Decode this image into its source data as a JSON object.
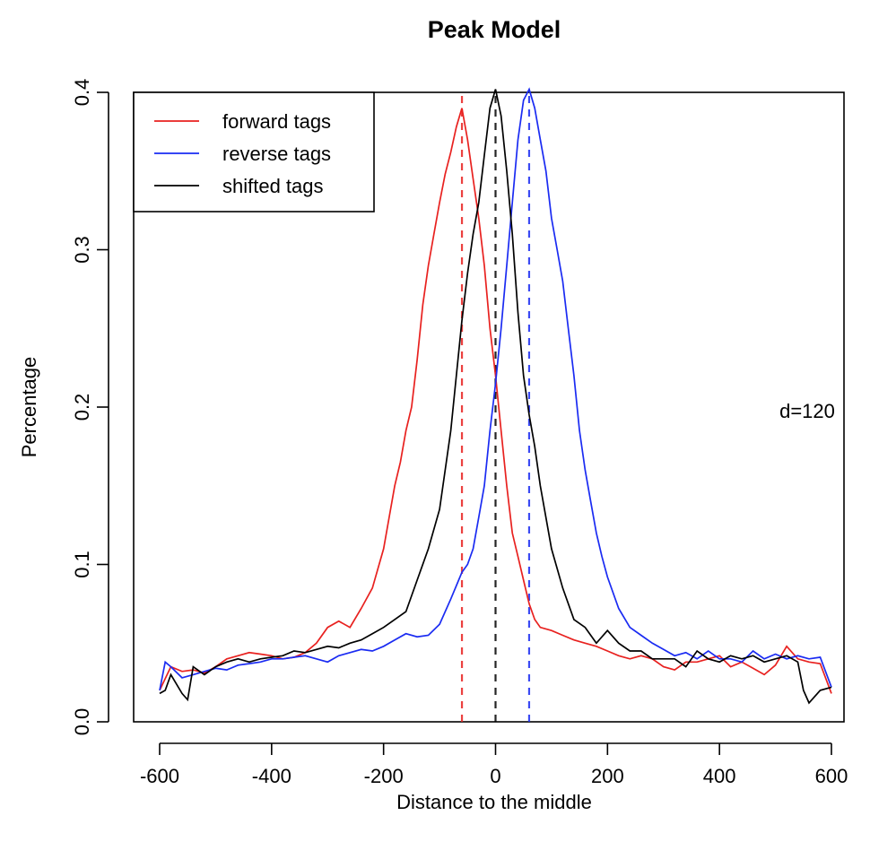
{
  "chart_data": {
    "type": "line",
    "title": "Peak Model",
    "xlabel": "Distance to the middle",
    "ylabel": "Percentage",
    "xlim": [
      -600,
      600
    ],
    "ylim": [
      0,
      0.4
    ],
    "xticks": [
      -600,
      -400,
      -200,
      0,
      200,
      400,
      600
    ],
    "yticks": [
      0.0,
      0.1,
      0.2,
      0.3,
      0.4
    ],
    "xtick_labels": [
      "-600",
      "-400",
      "-200",
      "0",
      "200",
      "400",
      "600"
    ],
    "ytick_labels": [
      "0.0",
      "0.1",
      "0.2",
      "0.3",
      "0.4"
    ],
    "grid": false,
    "legend_position": "top-left",
    "annotation": "d=120",
    "series": [
      {
        "name": "forward tags",
        "color": "#e8211f",
        "x": [
          -600,
          -580,
          -560,
          -540,
          -520,
          -500,
          -480,
          -460,
          -440,
          -420,
          -400,
          -380,
          -360,
          -340,
          -320,
          -300,
          -280,
          -260,
          -240,
          -220,
          -200,
          -190,
          -180,
          -170,
          -160,
          -150,
          -140,
          -130,
          -120,
          -110,
          -100,
          -90,
          -80,
          -70,
          -60,
          -50,
          -40,
          -30,
          -20,
          -10,
          0,
          10,
          20,
          30,
          40,
          50,
          60,
          70,
          80,
          100,
          120,
          140,
          160,
          180,
          200,
          220,
          240,
          260,
          280,
          300,
          320,
          340,
          360,
          380,
          400,
          420,
          440,
          460,
          480,
          500,
          520,
          540,
          560,
          580,
          600
        ],
        "y": [
          0.02,
          0.035,
          0.032,
          0.033,
          0.031,
          0.035,
          0.04,
          0.042,
          0.044,
          0.043,
          0.042,
          0.04,
          0.041,
          0.044,
          0.05,
          0.06,
          0.064,
          0.06,
          0.072,
          0.085,
          0.11,
          0.13,
          0.15,
          0.165,
          0.185,
          0.2,
          0.23,
          0.265,
          0.29,
          0.31,
          0.33,
          0.348,
          0.362,
          0.378,
          0.39,
          0.37,
          0.345,
          0.32,
          0.29,
          0.25,
          0.22,
          0.185,
          0.15,
          0.12,
          0.105,
          0.09,
          0.075,
          0.065,
          0.06,
          0.058,
          0.055,
          0.052,
          0.05,
          0.048,
          0.045,
          0.042,
          0.04,
          0.042,
          0.04,
          0.035,
          0.033,
          0.038,
          0.038,
          0.04,
          0.042,
          0.035,
          0.038,
          0.034,
          0.03,
          0.036,
          0.048,
          0.04,
          0.038,
          0.037,
          0.018
        ]
      },
      {
        "name": "reverse tags",
        "color": "#1a2bf2",
        "x": [
          -600,
          -590,
          -580,
          -560,
          -540,
          -520,
          -500,
          -480,
          -460,
          -440,
          -420,
          -400,
          -380,
          -360,
          -340,
          -320,
          -300,
          -280,
          -260,
          -240,
          -220,
          -200,
          -180,
          -160,
          -140,
          -120,
          -100,
          -80,
          -60,
          -50,
          -40,
          -30,
          -20,
          -10,
          0,
          10,
          20,
          30,
          40,
          50,
          60,
          70,
          80,
          90,
          100,
          110,
          120,
          130,
          140,
          150,
          160,
          170,
          180,
          190,
          200,
          220,
          240,
          260,
          280,
          300,
          320,
          340,
          360,
          380,
          400,
          420,
          440,
          460,
          480,
          500,
          520,
          540,
          560,
          580,
          600
        ],
        "y": [
          0.02,
          0.038,
          0.035,
          0.028,
          0.03,
          0.032,
          0.034,
          0.033,
          0.036,
          0.037,
          0.038,
          0.04,
          0.04,
          0.041,
          0.042,
          0.04,
          0.038,
          0.042,
          0.044,
          0.046,
          0.045,
          0.048,
          0.052,
          0.056,
          0.054,
          0.055,
          0.062,
          0.078,
          0.095,
          0.1,
          0.11,
          0.13,
          0.15,
          0.185,
          0.215,
          0.25,
          0.29,
          0.33,
          0.37,
          0.395,
          0.402,
          0.39,
          0.37,
          0.35,
          0.32,
          0.3,
          0.28,
          0.25,
          0.22,
          0.185,
          0.16,
          0.14,
          0.12,
          0.105,
          0.092,
          0.072,
          0.06,
          0.055,
          0.05,
          0.046,
          0.042,
          0.044,
          0.04,
          0.045,
          0.04,
          0.04,
          0.038,
          0.045,
          0.04,
          0.043,
          0.04,
          0.042,
          0.04,
          0.041,
          0.022
        ]
      },
      {
        "name": "shifted tags",
        "color": "#000000",
        "x": [
          -600,
          -590,
          -580,
          -560,
          -550,
          -540,
          -520,
          -500,
          -480,
          -460,
          -440,
          -420,
          -400,
          -380,
          -360,
          -340,
          -320,
          -300,
          -280,
          -260,
          -240,
          -220,
          -200,
          -180,
          -160,
          -140,
          -120,
          -100,
          -80,
          -60,
          -50,
          -40,
          -30,
          -20,
          -10,
          0,
          10,
          20,
          30,
          40,
          50,
          60,
          70,
          80,
          100,
          120,
          140,
          160,
          180,
          200,
          220,
          240,
          260,
          280,
          300,
          320,
          340,
          360,
          380,
          400,
          420,
          440,
          460,
          480,
          500,
          520,
          540,
          550,
          560,
          580,
          600
        ],
        "y": [
          0.018,
          0.02,
          0.03,
          0.018,
          0.014,
          0.035,
          0.03,
          0.035,
          0.038,
          0.04,
          0.038,
          0.04,
          0.041,
          0.042,
          0.045,
          0.044,
          0.046,
          0.048,
          0.047,
          0.05,
          0.052,
          0.056,
          0.06,
          0.065,
          0.07,
          0.09,
          0.11,
          0.135,
          0.185,
          0.255,
          0.285,
          0.31,
          0.33,
          0.36,
          0.39,
          0.402,
          0.385,
          0.35,
          0.31,
          0.26,
          0.22,
          0.195,
          0.175,
          0.15,
          0.11,
          0.085,
          0.065,
          0.06,
          0.05,
          0.058,
          0.05,
          0.045,
          0.045,
          0.04,
          0.04,
          0.04,
          0.035,
          0.045,
          0.04,
          0.038,
          0.042,
          0.04,
          0.042,
          0.038,
          0.04,
          0.042,
          0.038,
          0.02,
          0.012,
          0.02,
          0.022
        ]
      }
    ],
    "vlines": [
      {
        "x": -60,
        "color": "#e8211f"
      },
      {
        "x": 0,
        "color": "#000000"
      },
      {
        "x": 60,
        "color": "#1a2bf2"
      }
    ]
  }
}
